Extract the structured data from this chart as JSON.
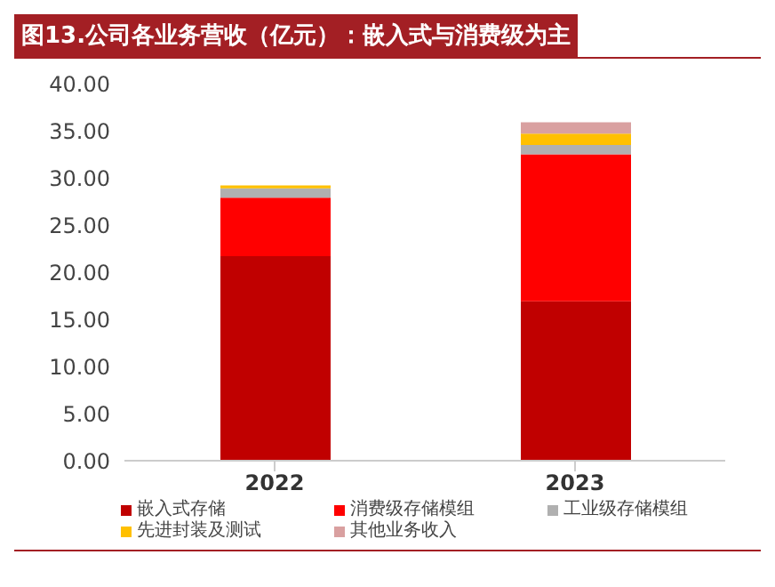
{
  "chart_data": {
    "type": "bar",
    "title": "图13.公司各业务营收（亿元）：嵌入式与消费级为主",
    "categories": [
      "2022",
      "2023"
    ],
    "stacked": true,
    "ylim": [
      0,
      40
    ],
    "yticks": [
      {
        "value": 0,
        "label": "0.00"
      },
      {
        "value": 5,
        "label": "5.00"
      },
      {
        "value": 10,
        "label": "10.00"
      },
      {
        "value": 15,
        "label": "15.00"
      },
      {
        "value": 20,
        "label": "20.00"
      },
      {
        "value": 25,
        "label": "25.00"
      },
      {
        "value": 30,
        "label": "30.00"
      },
      {
        "value": 35,
        "label": "35.00"
      },
      {
        "value": 40,
        "label": "40.00"
      }
    ],
    "grid": false,
    "legend": "bottom",
    "series": [
      {
        "name": "嵌入式存储",
        "color": "#c00000",
        "values": [
          21.7,
          16.9
        ]
      },
      {
        "name": "消费级存储模组",
        "color": "#ff0000",
        "values": [
          6.2,
          15.6
        ]
      },
      {
        "name": "工业级存储模组",
        "color": "#b0b0b0",
        "values": [
          1.0,
          1.0
        ]
      },
      {
        "name": "先进封装及测试",
        "color": "#ffc000",
        "values": [
          0.3,
          1.2
        ]
      },
      {
        "name": "其他业务收入",
        "color": "#d9a0a0",
        "values": [
          0,
          1.2
        ]
      }
    ]
  }
}
